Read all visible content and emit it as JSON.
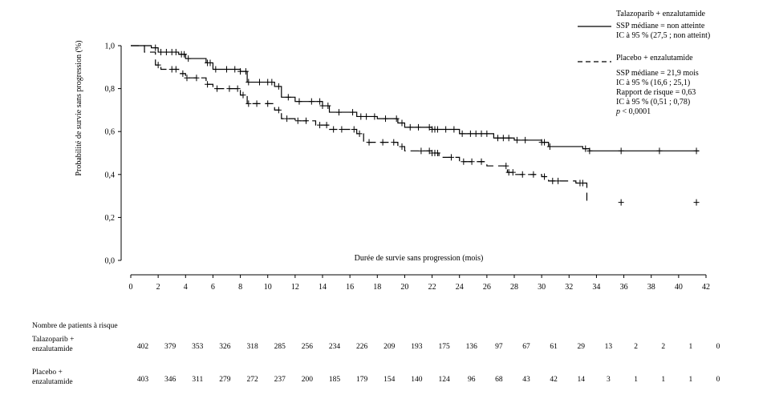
{
  "chart_data": {
    "type": "line",
    "subtype": "kaplan-meier",
    "title": "",
    "xlabel": "Durée de survie sans progression (mois)",
    "ylabel": "Probabilité de survie sans progression (%)",
    "xlim": [
      0,
      42
    ],
    "ylim": [
      0,
      1.0
    ],
    "x_ticks": [
      "0",
      "2",
      "4",
      "6",
      "8",
      "10",
      "12",
      "14",
      "16",
      "18",
      "20",
      "22",
      "24",
      "26",
      "28",
      "30",
      "32",
      "34",
      "36",
      "38",
      "40",
      "42"
    ],
    "y_ticks": [
      "0,0",
      "0,2",
      "0,4",
      "0,6",
      "0,8",
      "1,0"
    ],
    "grid": false,
    "legend_position": "top-right",
    "series": [
      {
        "name": "Talazoparib + enzalutamide",
        "line_style": "solid",
        "legend_lines": [
          "SSP médiane = non atteinte",
          "IC à 95 % (27,5 ; non atteint)"
        ],
        "x": [
          0,
          1.5,
          2.0,
          3.5,
          4.0,
          5.5,
          6.0,
          8.0,
          8.5,
          10.5,
          11.0,
          12.0,
          14.0,
          14.5,
          16.5,
          18.0,
          19.5,
          20.0,
          22.0,
          24.0,
          26.5,
          28.0,
          30.0,
          30.5,
          33.0,
          33.5,
          41.5
        ],
        "y": [
          1.0,
          0.99,
          0.97,
          0.96,
          0.94,
          0.92,
          0.89,
          0.88,
          0.83,
          0.81,
          0.76,
          0.74,
          0.72,
          0.69,
          0.67,
          0.66,
          0.64,
          0.62,
          0.61,
          0.59,
          0.57,
          0.56,
          0.55,
          0.53,
          0.52,
          0.51,
          0.51
        ],
        "censor_x": [
          1.8,
          2.2,
          2.6,
          3.0,
          3.3,
          3.7,
          3.9,
          4.2,
          5.6,
          5.8,
          6.2,
          7.0,
          7.6,
          8.0,
          8.4,
          8.6,
          9.4,
          10.0,
          10.3,
          10.8,
          11.5,
          12.3,
          13.2,
          13.8,
          14.0,
          14.4,
          15.2,
          16.2,
          16.8,
          17.2,
          17.8,
          18.6,
          19.4,
          19.8,
          20.4,
          21.0,
          21.8,
          22.0,
          22.2,
          22.4,
          23.0,
          23.6,
          24.2,
          24.8,
          25.2,
          25.6,
          26.0,
          26.8,
          27.2,
          27.6,
          28.2,
          28.8,
          30.0,
          30.2,
          30.6,
          33.2,
          33.5,
          35.8,
          38.6,
          41.3
        ],
        "at_risk": [
          "402",
          "379",
          "353",
          "326",
          "318",
          "285",
          "256",
          "234",
          "226",
          "209",
          "193",
          "175",
          "136",
          "97",
          "67",
          "61",
          "29",
          "13",
          "2",
          "2",
          "1",
          "0"
        ]
      },
      {
        "name": "Placebo + enzalutamide",
        "line_style": "dashed",
        "legend_lines": [
          "SSP médiane = 21,9 mois",
          "IC à 95 % (16,6 ; 25,1)",
          "Rapport de risque = 0,63",
          "IC à 95 % (0,51 ; 0,78)",
          "p < 0,0001"
        ],
        "x": [
          0,
          1.0,
          1.8,
          2.2,
          3.5,
          4.0,
          5.5,
          6.0,
          8.0,
          8.5,
          10.5,
          11.0,
          12.0,
          13.5,
          14.5,
          16.5,
          17.0,
          19.5,
          20.0,
          22.0,
          22.5,
          24.0,
          26.0,
          27.5,
          28.0,
          30.0,
          30.5,
          32.5,
          33.3
        ],
        "y": [
          1.0,
          0.97,
          0.91,
          0.89,
          0.87,
          0.85,
          0.82,
          0.8,
          0.77,
          0.73,
          0.7,
          0.66,
          0.65,
          0.63,
          0.61,
          0.59,
          0.55,
          0.53,
          0.51,
          0.5,
          0.48,
          0.46,
          0.44,
          0.41,
          0.4,
          0.39,
          0.37,
          0.36,
          0.27
        ],
        "censor_x": [
          2.0,
          3.0,
          3.3,
          3.8,
          4.1,
          4.8,
          5.6,
          6.3,
          7.2,
          7.8,
          8.2,
          8.6,
          9.2,
          10.0,
          10.8,
          11.4,
          12.2,
          12.8,
          13.8,
          14.3,
          14.8,
          15.4,
          16.3,
          16.7,
          17.4,
          18.4,
          19.2,
          19.8,
          21.2,
          21.8,
          22.0,
          22.2,
          22.4,
          23.4,
          24.3,
          24.9,
          25.6,
          27.4,
          27.6,
          27.9,
          28.6,
          29.4,
          30.2,
          30.8,
          31.2,
          32.8,
          33.0,
          35.8,
          41.3
        ],
        "at_risk": [
          "403",
          "346",
          "311",
          "279",
          "272",
          "237",
          "200",
          "185",
          "179",
          "154",
          "140",
          "124",
          "96",
          "68",
          "43",
          "42",
          "14",
          "3",
          "1",
          "1",
          "1",
          "0"
        ]
      }
    ],
    "at_risk_title": "Nombre de patients à risque",
    "at_risk_labels": [
      [
        "Talazoparib +",
        "enzalutamide"
      ],
      [
        "Placebo +",
        "enzalutamide"
      ]
    ]
  }
}
